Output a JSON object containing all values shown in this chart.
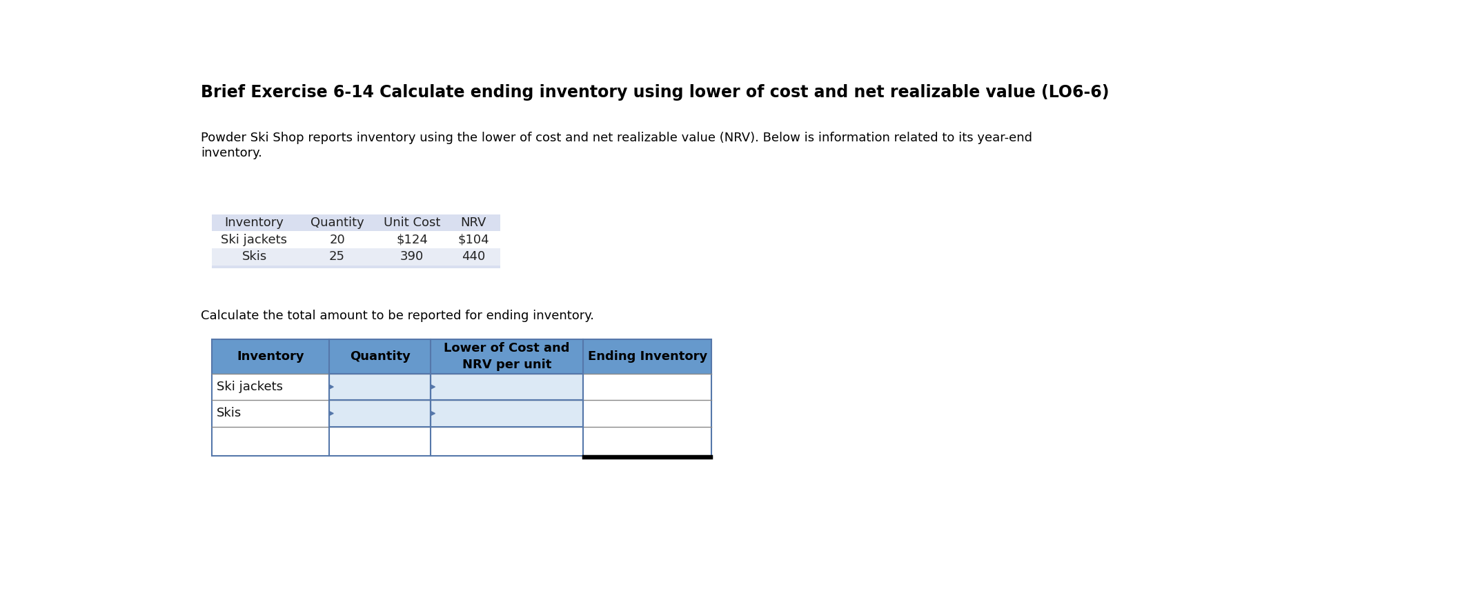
{
  "title": "Brief Exercise 6-14 Calculate ending inventory using lower of cost and net realizable value (LO6-6)",
  "paragraph_line1": "Powder Ski Shop reports inventory using the lower of cost and net realizable value (NRV). Below is information related to its year-end",
  "paragraph_line2": "inventory.",
  "info_table": {
    "headers": [
      "Inventory",
      "Quantity",
      "Unit Cost",
      "NRV"
    ],
    "rows": [
      [
        "Ski jackets",
        "20",
        "$124",
        "$104"
      ],
      [
        "Skis",
        "25",
        "390",
        "440"
      ]
    ],
    "header_bg": "#d9dff0",
    "row1_bg": "#ffffff",
    "row2_bg": "#e8ecf5",
    "border_color": "#a0aac8"
  },
  "calc_label": "Calculate the total amount to be reported for ending inventory.",
  "answer_table": {
    "headers": [
      "Inventory",
      "Quantity",
      "Lower of Cost and\nNRV per unit",
      "Ending Inventory"
    ],
    "rows": [
      [
        "Ski jackets",
        "",
        "",
        ""
      ],
      [
        "Skis",
        "",
        "",
        ""
      ],
      [
        "",
        "",
        "",
        ""
      ]
    ],
    "header_bg": "#6699cc",
    "header_fg": "#000000",
    "row_bg": "#ffffff",
    "col2_3_bg": "#dce9f5",
    "border_color": "#5577aa",
    "row_border_color": "#7799bb",
    "bottom_double_color": "#000000"
  },
  "bg_color": "#ffffff",
  "title_color": "#000000",
  "title_fontsize": 17,
  "body_fontsize": 13,
  "info_fontsize": 13
}
